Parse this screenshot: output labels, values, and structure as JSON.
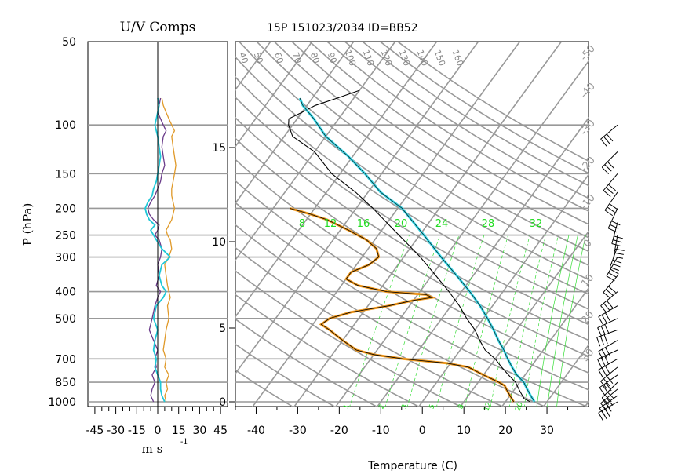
{
  "chart_data": [
    {
      "type": "line",
      "title": "U/V Comps",
      "xlabel": "m s",
      "xlabel_exp": "-1",
      "ylabel": "P (hPa)",
      "xlim": [
        -50,
        50
      ],
      "ylim": [
        1000,
        50
      ],
      "y_scale": "log",
      "x_tick_labels": [
        "-45",
        "-30",
        "-15",
        "0",
        "15",
        "30",
        "45"
      ],
      "x_ticks": [
        -45,
        -30,
        -15,
        0,
        15,
        30,
        45
      ],
      "p_ticks": [
        50,
        100,
        150,
        200,
        250,
        300,
        400,
        500,
        700,
        850,
        1000
      ],
      "p_tick_labels": [
        "50",
        "100",
        "150",
        "200",
        "250",
        "300",
        "400",
        "500",
        "700",
        "850",
        "1000"
      ],
      "series": [
        {
          "name": "U",
          "color": "#6a3b8a",
          "points": [
            [
              1000,
              -3
            ],
            [
              950,
              -5
            ],
            [
              900,
              -4
            ],
            [
              850,
              -2
            ],
            [
              800,
              -4
            ],
            [
              750,
              -1
            ],
            [
              700,
              -2
            ],
            [
              650,
              0
            ],
            [
              600,
              -3
            ],
            [
              550,
              -6
            ],
            [
              500,
              -4
            ],
            [
              450,
              -2
            ],
            [
              420,
              0
            ],
            [
              400,
              2
            ],
            [
              380,
              -1
            ],
            [
              350,
              1
            ],
            [
              320,
              0
            ],
            [
              300,
              2
            ],
            [
              280,
              3
            ],
            [
              260,
              1
            ],
            [
              250,
              -2
            ],
            [
              240,
              0
            ],
            [
              230,
              1
            ],
            [
              220,
              -3
            ],
            [
              210,
              -6
            ],
            [
              200,
              -7
            ],
            [
              190,
              -5
            ],
            [
              180,
              -2
            ],
            [
              170,
              0
            ],
            [
              160,
              2
            ],
            [
              150,
              3
            ],
            [
              140,
              5
            ],
            [
              130,
              4
            ],
            [
              120,
              3
            ],
            [
              110,
              4
            ],
            [
              105,
              6
            ],
            [
              100,
              4
            ],
            [
              95,
              2
            ],
            [
              90,
              0
            ],
            [
              85,
              1
            ],
            [
              80,
              2
            ]
          ]
        },
        {
          "name": "V",
          "color": "#e09a2a",
          "points": [
            [
              1000,
              6
            ],
            [
              950,
              5
            ],
            [
              900,
              7
            ],
            [
              850,
              6
            ],
            [
              800,
              8
            ],
            [
              750,
              5
            ],
            [
              700,
              6
            ],
            [
              650,
              4
            ],
            [
              600,
              5
            ],
            [
              550,
              6
            ],
            [
              500,
              8
            ],
            [
              450,
              7
            ],
            [
              420,
              9
            ],
            [
              400,
              8
            ],
            [
              380,
              7
            ],
            [
              350,
              6
            ],
            [
              320,
              5
            ],
            [
              300,
              8
            ],
            [
              280,
              10
            ],
            [
              260,
              9
            ],
            [
              250,
              7
            ],
            [
              240,
              6
            ],
            [
              230,
              8
            ],
            [
              220,
              10
            ],
            [
              210,
              11
            ],
            [
              200,
              12
            ],
            [
              190,
              11
            ],
            [
              180,
              10
            ],
            [
              170,
              10
            ],
            [
              160,
              11
            ],
            [
              150,
              12
            ],
            [
              140,
              13
            ],
            [
              130,
              12
            ],
            [
              120,
              11
            ],
            [
              110,
              10
            ],
            [
              105,
              12
            ],
            [
              100,
              10
            ],
            [
              95,
              8
            ],
            [
              90,
              6
            ],
            [
              85,
              4
            ],
            [
              80,
              3
            ]
          ]
        },
        {
          "name": "Speed",
          "color": "#20c8d8",
          "points": [
            [
              1000,
              5
            ],
            [
              950,
              3
            ],
            [
              900,
              2
            ],
            [
              850,
              2
            ],
            [
              800,
              0
            ],
            [
              750,
              -2
            ],
            [
              700,
              -1
            ],
            [
              650,
              -3
            ],
            [
              600,
              -2
            ],
            [
              550,
              0
            ],
            [
              500,
              -3
            ],
            [
              450,
              -1
            ],
            [
              420,
              4
            ],
            [
              400,
              6
            ],
            [
              380,
              3
            ],
            [
              350,
              1
            ],
            [
              320,
              3
            ],
            [
              300,
              9
            ],
            [
              290,
              6
            ],
            [
              280,
              3
            ],
            [
              270,
              1
            ],
            [
              260,
              -1
            ],
            [
              250,
              -3
            ],
            [
              240,
              -5
            ],
            [
              230,
              -2
            ],
            [
              220,
              -6
            ],
            [
              210,
              -8
            ],
            [
              200,
              -9
            ],
            [
              190,
              -7
            ],
            [
              180,
              -4
            ],
            [
              170,
              -3
            ],
            [
              160,
              -1
            ],
            [
              150,
              0
            ],
            [
              140,
              1
            ],
            [
              130,
              2
            ],
            [
              120,
              1
            ],
            [
              110,
              0
            ],
            [
              105,
              -1
            ],
            [
              100,
              -2
            ],
            [
              95,
              -1
            ],
            [
              90,
              0
            ],
            [
              85,
              1
            ],
            [
              80,
              0
            ]
          ]
        }
      ]
    },
    {
      "type": "line",
      "title": "15P 151023/2034 ID=BB52",
      "xlabel": "Temperature (C)",
      "xlim": [
        -45,
        40
      ],
      "x_ticks": [
        -40,
        -30,
        -20,
        -10,
        0,
        10,
        20,
        30
      ],
      "x_tick_labels": [
        "-40",
        "-30",
        "-20",
        "-10",
        "0",
        "10",
        "20",
        "30"
      ],
      "height_tick_labels": [
        "0",
        "5",
        "10",
        "15"
      ],
      "height_ticks_km": [
        0,
        5,
        10,
        15
      ],
      "mixing_ratio_labels": [
        "8",
        "12",
        "16",
        "20",
        "24",
        "28",
        "32"
      ],
      "mixing_ratio_bottom_labels": [
        "1",
        "2",
        "3",
        "5",
        "8",
        "12",
        "20"
      ],
      "theta_labels": [
        "40",
        "50",
        "60",
        "70",
        "80",
        "90",
        "100",
        "110",
        "120",
        "130",
        "140",
        "150",
        "160"
      ],
      "skew_temp_labels": [
        "-50",
        "-40",
        "-30",
        "-20",
        "-10",
        "0",
        "10",
        "20",
        "30"
      ],
      "series": [
        {
          "name": "Temperature",
          "color": "#000000",
          "points": [
            [
              1000,
              26
            ],
            [
              975,
              24
            ],
            [
              950,
              23
            ],
            [
              925,
              22
            ],
            [
              900,
              21
            ],
            [
              875,
              20
            ],
            [
              850,
              19
            ],
            [
              800,
              16
            ],
            [
              750,
              13
            ],
            [
              700,
              10
            ],
            [
              650,
              6
            ],
            [
              600,
              3
            ],
            [
              550,
              0
            ],
            [
              500,
              -4
            ],
            [
              450,
              -8
            ],
            [
              400,
              -13
            ],
            [
              350,
              -19
            ],
            [
              300,
              -26
            ],
            [
              250,
              -35
            ],
            [
              200,
              -46
            ],
            [
              175,
              -53
            ],
            [
              150,
              -62
            ],
            [
              125,
              -70
            ],
            [
              110,
              -78
            ],
            [
              100,
              -81
            ],
            [
              95,
              -82
            ],
            [
              90,
              -80
            ],
            [
              85,
              -78
            ],
            [
              80,
              -74
            ],
            [
              75,
              -70
            ]
          ]
        },
        {
          "name": "Dewpoint",
          "color": "#f29a1f",
          "points": [
            [
              1000,
              22
            ],
            [
              975,
              21
            ],
            [
              950,
              20
            ],
            [
              925,
              19
            ],
            [
              900,
              18
            ],
            [
              875,
              17
            ],
            [
              850,
              15
            ],
            [
              800,
              10
            ],
            [
              750,
              5
            ],
            [
              725,
              -1
            ],
            [
              700,
              -12
            ],
            [
              675,
              -20
            ],
            [
              650,
              -25
            ],
            [
              600,
              -30
            ],
            [
              550,
              -35
            ],
            [
              525,
              -38
            ],
            [
              500,
              -37
            ],
            [
              475,
              -33
            ],
            [
              450,
              -25
            ],
            [
              430,
              -20
            ],
            [
              420,
              -16
            ],
            [
              410,
              -18
            ],
            [
              400,
              -28
            ],
            [
              380,
              -36
            ],
            [
              360,
              -40
            ],
            [
              340,
              -40
            ],
            [
              320,
              -37
            ],
            [
              300,
              -36
            ],
            [
              280,
              -38
            ],
            [
              260,
              -42
            ],
            [
              240,
              -48
            ],
            [
              220,
              -55
            ],
            [
              210,
              -60
            ],
            [
              200,
              -66
            ]
          ]
        },
        {
          "name": "Parcel",
          "color": "#3bd8e8",
          "points": [
            [
              1000,
              27
            ],
            [
              950,
              25
            ],
            [
              900,
              23
            ],
            [
              850,
              21
            ],
            [
              800,
              18
            ],
            [
              750,
              15.5
            ],
            [
              700,
              13
            ],
            [
              650,
              10.5
            ],
            [
              600,
              7.5
            ],
            [
              550,
              4.5
            ],
            [
              500,
              1
            ],
            [
              450,
              -3
            ],
            [
              400,
              -8
            ],
            [
              350,
              -14
            ],
            [
              300,
              -21
            ],
            [
              250,
              -29
            ],
            [
              200,
              -39
            ],
            [
              175,
              -47
            ],
            [
              150,
              -54
            ],
            [
              130,
              -61
            ],
            [
              110,
              -70
            ],
            [
              95,
              -76
            ],
            [
              85,
              -81
            ],
            [
              80,
              -83
            ]
          ]
        }
      ]
    }
  ],
  "wind_barbs": {
    "color": "#000000",
    "levels": [
      1000,
      950,
      900,
      850,
      800,
      750,
      700,
      650,
      600,
      550,
      500,
      450,
      400,
      350,
      300,
      275,
      250,
      225,
      200,
      175,
      150,
      125,
      100
    ]
  }
}
